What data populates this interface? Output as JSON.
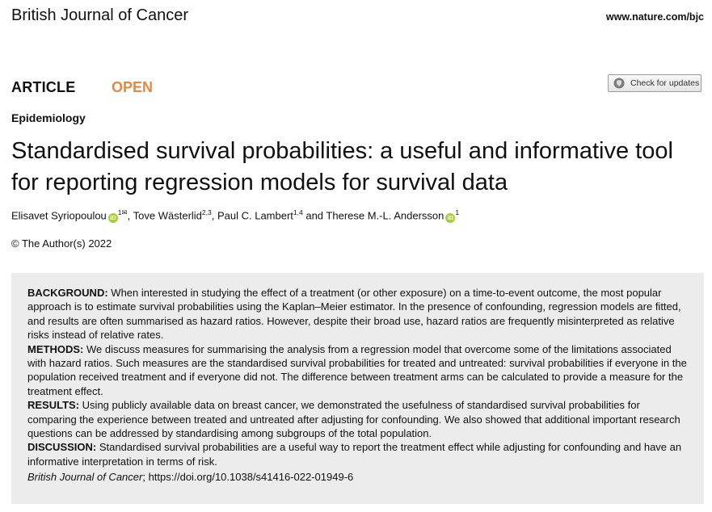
{
  "header": {
    "journal_name": "British Journal of Cancer",
    "url": "www.nature.com/bjc"
  },
  "labels": {
    "article": "ARTICLE",
    "open": "OPEN",
    "check_updates": "Check for updates",
    "section": "Epidemiology"
  },
  "paper": {
    "title": "Standardised survival probabilities: a useful and informative tool for reporting regression models for survival data",
    "authors": [
      {
        "name": "Elisavet Syriopoulou",
        "affil": "1"
      },
      {
        "name": "Tove Wästerlid",
        "affil": "2,3"
      },
      {
        "name": "Paul C. Lambert",
        "affil": "1,4"
      },
      {
        "name": "Therese M.-L. Andersson",
        "affil": "1"
      }
    ],
    "author_separator_1": ", ",
    "author_separator_2": ", ",
    "author_separator_3": " and ",
    "orcid_glyph": "iD",
    "email_glyph": "✉",
    "copyright": "© The Author(s) 2022"
  },
  "abstract": {
    "background_label": "BACKGROUND:",
    "background": "When interested in studying the effect of a treatment (or other exposure) on a time-to-event outcome, the most popular approach is to estimate survival probabilities using the Kaplan–Meier estimator. In the presence of confounding, regression models are fitted, and results are often summarised as hazard ratios. However, despite their broad use, hazard ratios are frequently misinterpreted as relative risks instead of relative rates.",
    "methods_label": "METHODS:",
    "methods": "We discuss measures for summarising the analysis from a regression model that overcome some of the limitations associated with hazard ratios. Such measures are the standardised survival probabilities for treated and untreated: survival probabilities if everyone in the population received treatment and if everyone did not. The difference between treatment arms can be calculated to provide a measure for the treatment effect.",
    "results_label": "RESULTS:",
    "results": "Using publicly available data on breast cancer, we demonstrated the usefulness of standardised survival probabilities for comparing the experience between treated and untreated after adjusting for confounding. We also showed that additional important research questions can be addressed by standardising among subgroups of the total population.",
    "discussion_label": "DISCUSSION:",
    "discussion": "Standardised survival probabilities are a useful way to report the treatment effect while adjusting for confounding and have an informative interpretation in terms of risk.",
    "citation_journal": "British Journal of Cancer",
    "citation_rest": "; https://doi.org/10.1038/s41416-022-01949-6"
  }
}
